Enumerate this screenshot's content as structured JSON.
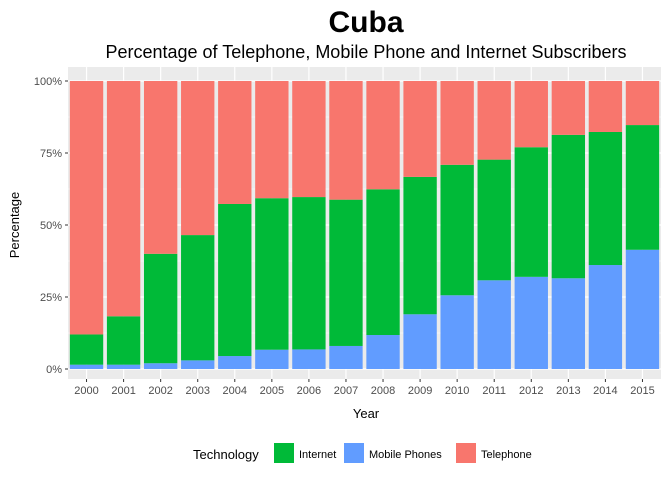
{
  "chart_data": {
    "type": "bar",
    "stacked": true,
    "title": "Cuba",
    "subtitle": "Percentage of Telephone, Mobile Phone and Internet Subscribers",
    "xlabel": "Year",
    "ylabel": "Percentage",
    "ylim": [
      0,
      100
    ],
    "y_ticks": [
      "0%",
      "25%",
      "50%",
      "75%",
      "100%"
    ],
    "y_tick_values": [
      0,
      25,
      50,
      75,
      100
    ],
    "grid": true,
    "legend_position": "bottom",
    "legend_title": "Technology",
    "categories": [
      "2000",
      "2001",
      "2002",
      "2003",
      "2004",
      "2005",
      "2006",
      "2007",
      "2008",
      "2009",
      "2010",
      "2011",
      "2012",
      "2013",
      "2014",
      "2015"
    ],
    "stack_order": [
      "Mobile Phones",
      "Internet",
      "Telephone"
    ],
    "series": [
      {
        "name": "Internet",
        "color": "#00ba38",
        "values": [
          10.5,
          16.8,
          38.0,
          43.5,
          52.8,
          52.6,
          52.9,
          50.8,
          50.6,
          47.7,
          45.3,
          41.9,
          45.0,
          49.8,
          46.2,
          43.3
        ]
      },
      {
        "name": "Mobile Phones",
        "color": "#619cff",
        "values": [
          1.5,
          1.5,
          2.0,
          3.0,
          4.5,
          6.7,
          6.8,
          8.0,
          11.8,
          19.0,
          25.6,
          30.8,
          32.0,
          31.5,
          36.1,
          41.4
        ]
      },
      {
        "name": "Telephone",
        "color": "#f8766d",
        "values": [
          88.0,
          81.7,
          60.0,
          53.5,
          42.7,
          40.7,
          40.3,
          41.2,
          37.6,
          33.3,
          29.1,
          27.3,
          23.0,
          18.7,
          17.7,
          15.3
        ]
      }
    ]
  }
}
